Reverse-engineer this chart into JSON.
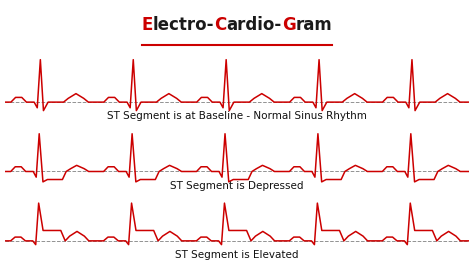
{
  "title_parts": [
    [
      "E",
      "#cc0000"
    ],
    [
      "lectro-",
      "#1a1a1a"
    ],
    [
      "C",
      "#cc0000"
    ],
    [
      "ardio-",
      "#1a1a1a"
    ],
    [
      "G",
      "#cc0000"
    ],
    [
      "ram",
      "#1a1a1a"
    ]
  ],
  "ecg_color": "#cc0000",
  "baseline_color": "#777777",
  "background_color": "#ffffff",
  "label1": "ST Segment is at Baseline - Normal Sinus Rhythm",
  "label2": "ST Segment is Depressed",
  "label3": "ST Segment is Elevated",
  "label_fontsize": 7.5,
  "title_fontsize": 12,
  "underline_color": "#cc0000"
}
